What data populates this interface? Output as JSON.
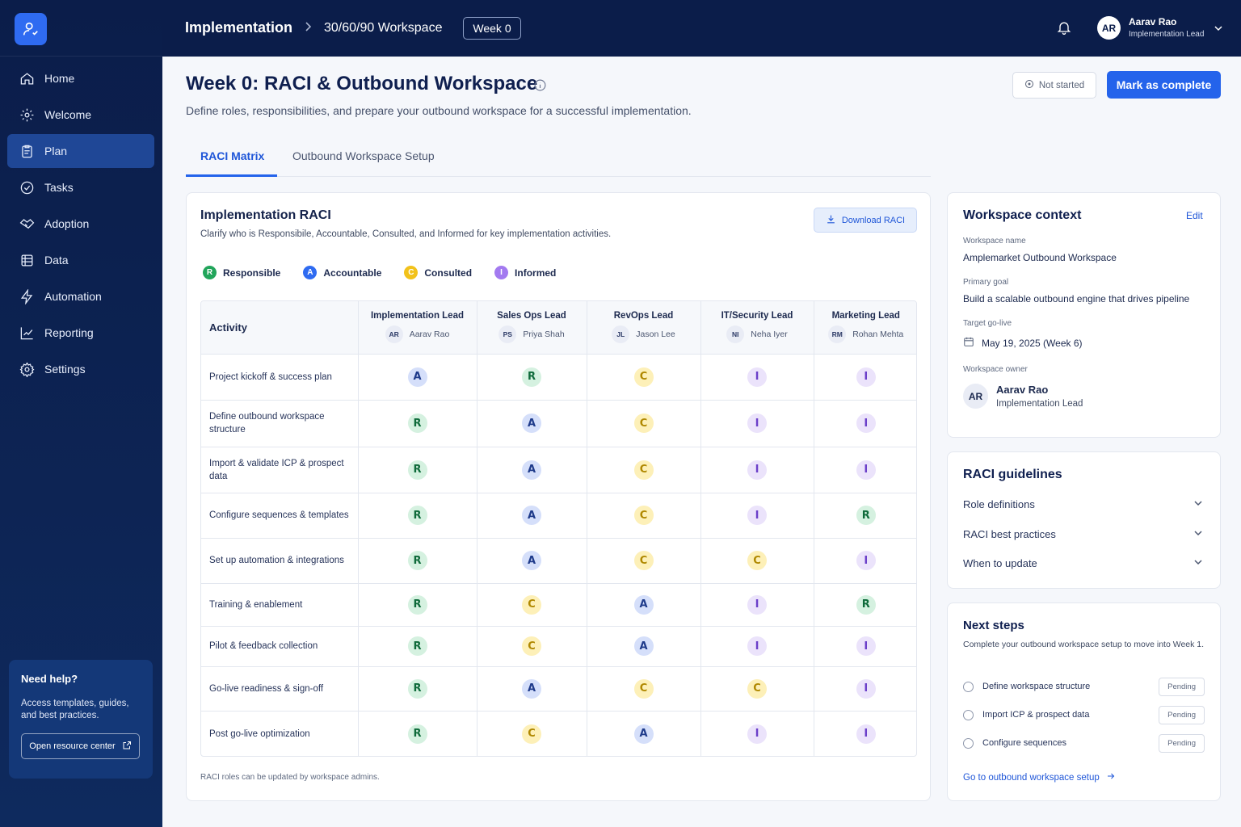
{
  "breadcrumb": {
    "root": "Implementation",
    "current": "30/60/90 Workspace",
    "badge": "Week 0"
  },
  "user": {
    "initials": "AR",
    "name": "Aarav Rao",
    "role": "Implementation Lead"
  },
  "sidebar": {
    "items": [
      {
        "label": "Home",
        "icon": "home-icon"
      },
      {
        "label": "Welcome",
        "icon": "gear-icon"
      },
      {
        "label": "Plan",
        "icon": "clipboard-icon",
        "active": true
      },
      {
        "label": "Tasks",
        "icon": "check-circle-icon"
      },
      {
        "label": "Adoption",
        "icon": "handshake-icon"
      },
      {
        "label": "Data",
        "icon": "database-icon"
      },
      {
        "label": "Automation",
        "icon": "bolt-icon"
      },
      {
        "label": "Reporting",
        "icon": "chart-icon"
      },
      {
        "label": "Settings",
        "icon": "settings-icon"
      }
    ],
    "help": {
      "title": "Need help?",
      "text": "Access templates, guides, and best practices.",
      "button": "Open resource center"
    }
  },
  "header": {
    "title": "Week 0: RACI & Outbound Workspace",
    "subtitle": "Define roles, responsibilities, and prepare your outbound workspace for a successful implementation.",
    "status": "Not started",
    "complete_button": "Mark as complete"
  },
  "tabs": [
    "RACI Matrix",
    "Outbound Workspace Setup"
  ],
  "raci": {
    "title": "Implementation RACI",
    "subtitle": "Clarify who is Responsibile, Accountable, Consulted, and Informed for key implementation activities.",
    "download": "Download RACI",
    "legend": [
      {
        "letter": "R",
        "label": "Responsible",
        "color": "#22a55b"
      },
      {
        "letter": "A",
        "label": "Accountable",
        "color": "#2f6bf1"
      },
      {
        "letter": "C",
        "label": "Consulted",
        "color": "#f2c21b"
      },
      {
        "letter": "I",
        "label": "Informed",
        "color": "#a37af0"
      }
    ],
    "activity_header": "Activity",
    "roles": [
      {
        "role": "Implementation Lead",
        "initials": "AR",
        "person": "Aarav Rao"
      },
      {
        "role": "Sales Ops Lead",
        "initials": "PS",
        "person": "Priya Shah"
      },
      {
        "role": "RevOps Lead",
        "initials": "JL",
        "person": "Jason Lee"
      },
      {
        "role": "IT/Security Lead",
        "initials": "NI",
        "person": "Neha Iyer"
      },
      {
        "role": "Marketing Lead",
        "initials": "RM",
        "person": "Rohan Mehta"
      }
    ],
    "rows": [
      {
        "activity": "Project kickoff & success plan",
        "cells": [
          "A",
          "R",
          "C",
          "I",
          "I"
        ]
      },
      {
        "activity": "Define outbound workspace structure",
        "cells": [
          "R",
          "A",
          "C",
          "I",
          "I"
        ]
      },
      {
        "activity": "Import & validate ICP & prospect data",
        "cells": [
          "R",
          "A",
          "C",
          "I",
          "I"
        ]
      },
      {
        "activity": "Configure sequences & templates",
        "cells": [
          "R",
          "A",
          "C",
          "I",
          "R"
        ]
      },
      {
        "activity": "Set up automation & integrations",
        "cells": [
          "R",
          "A",
          "C",
          "C",
          "I"
        ]
      },
      {
        "activity": "Training & enablement",
        "cells": [
          "R",
          "C",
          "A",
          "I",
          "R"
        ]
      },
      {
        "activity": "Pilot & feedback collection",
        "cells": [
          "R",
          "C",
          "A",
          "I",
          "I"
        ]
      },
      {
        "activity": "Go-live readiness & sign-off",
        "cells": [
          "R",
          "A",
          "C",
          "C",
          "I"
        ]
      },
      {
        "activity": "Post go-live optimization",
        "cells": [
          "R",
          "C",
          "A",
          "I",
          "I"
        ]
      }
    ],
    "footer": "RACI roles can be updated by workspace admins."
  },
  "context": {
    "title": "Workspace context",
    "edit": "Edit",
    "name_label": "Workspace name",
    "name": "Amplemarket Outbound Workspace",
    "goal_label": "Primary goal",
    "goal": "Build a scalable outbound engine that drives pipeline",
    "golive_label": "Target go-live",
    "golive": "May 19, 2025 (Week 6)",
    "owner_label": "Workspace owner",
    "owner_initials": "AR",
    "owner_name": "Aarav Rao",
    "owner_role": "Implementation Lead"
  },
  "guidelines": {
    "title": "RACI guidelines",
    "items": [
      "Role definitions",
      "RACI best practices",
      "When to update"
    ]
  },
  "next_steps": {
    "title": "Next steps",
    "subtitle": "Complete your outbound workspace setup to move into Week 1.",
    "steps": [
      {
        "label": "Define workspace structure",
        "status": "Pending"
      },
      {
        "label": "Import ICP & prospect data",
        "status": "Pending"
      },
      {
        "label": "Configure sequences",
        "status": "Pending"
      }
    ],
    "link": "Go to outbound workspace setup"
  }
}
